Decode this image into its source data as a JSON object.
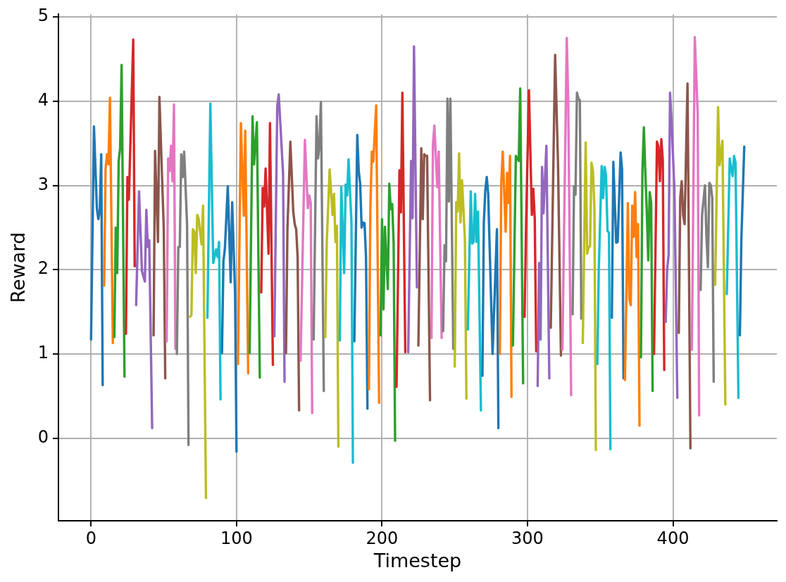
{
  "chart_data": {
    "type": "line",
    "xlabel": "Timestep",
    "ylabel": "Reward",
    "xlim": [
      -22.4,
      471.4
    ],
    "xticks": [
      0,
      100,
      200,
      300,
      400
    ],
    "ylim": [
      -0.98,
      5.03
    ],
    "yticks": [
      0,
      1,
      2,
      3,
      4,
      5
    ],
    "grid": true,
    "series": [
      {
        "color": "#1f77b4",
        "x": [
          0,
          2,
          4,
          5,
          6,
          7,
          8
        ],
        "values": [
          1.17,
          3.7,
          2.73,
          2.6,
          2.7,
          3.37,
          0.63
        ]
      },
      {
        "color": "#ff7f0e",
        "x": [
          9,
          10,
          11,
          12,
          13,
          15
        ],
        "values": [
          1.81,
          3.2,
          3.37,
          3.25,
          4.04,
          1.13
        ]
      },
      {
        "color": "#2ca02c",
        "x": [
          16,
          17,
          18,
          19,
          20,
          21,
          23
        ],
        "values": [
          1.2,
          2.5,
          1.96,
          3.29,
          3.44,
          4.43,
          0.73
        ]
      },
      {
        "color": "#d62728",
        "x": [
          24,
          25,
          26,
          29,
          30
        ],
        "values": [
          1.24,
          3.1,
          2.83,
          4.73,
          2.04
        ]
      },
      {
        "color": "#9467bd",
        "x": [
          31,
          33,
          35,
          37,
          38,
          39,
          40,
          42
        ],
        "values": [
          1.58,
          2.93,
          1.98,
          1.86,
          2.71,
          2.27,
          2.35,
          0.12
        ]
      },
      {
        "color": "#8c564b",
        "x": [
          43,
          44,
          46,
          47,
          50,
          51
        ],
        "values": [
          1.22,
          3.41,
          2.33,
          4.05,
          2.48,
          0.71
        ]
      },
      {
        "color": "#e377c2",
        "x": [
          52,
          53,
          54,
          55,
          56,
          57,
          58
        ],
        "values": [
          1.15,
          3.32,
          3.17,
          3.47,
          3.05,
          3.96,
          1.06
        ]
      },
      {
        "color": "#7f7f7f",
        "x": [
          59,
          60,
          61,
          62,
          63,
          64,
          66,
          67
        ],
        "values": [
          1.0,
          2.27,
          2.27,
          3.37,
          3.1,
          3.4,
          2.54,
          -0.08
        ]
      },
      {
        "color": "#bcbd22",
        "x": [
          68,
          69,
          70,
          71,
          72,
          73,
          74,
          76,
          77,
          79
        ],
        "values": [
          1.44,
          1.46,
          2.48,
          2.45,
          1.96,
          2.65,
          2.6,
          2.3,
          2.76,
          -0.71
        ]
      },
      {
        "color": "#17becf",
        "x": [
          80,
          82,
          84,
          86,
          87,
          88,
          89
        ],
        "values": [
          1.43,
          3.97,
          2.08,
          2.24,
          2.15,
          2.33,
          0.46
        ]
      },
      {
        "color": "#1f77b4",
        "x": [
          90,
          91,
          92,
          94,
          96,
          97,
          99,
          100
        ],
        "values": [
          1.01,
          2.1,
          2.25,
          2.99,
          1.85,
          2.8,
          1.72,
          -0.16
        ]
      },
      {
        "color": "#ff7f0e",
        "x": [
          101,
          103,
          105,
          106,
          108
        ],
        "values": [
          0.88,
          3.74,
          2.64,
          3.65,
          0.77
        ]
      },
      {
        "color": "#2ca02c",
        "x": [
          109,
          111,
          112,
          114,
          116
        ],
        "values": [
          1.01,
          3.82,
          3.25,
          3.75,
          0.72
        ]
      },
      {
        "color": "#d62728",
        "x": [
          117,
          118,
          119,
          120,
          122,
          123,
          125
        ],
        "values": [
          1.73,
          2.97,
          2.75,
          3.2,
          2.19,
          3.74,
          0.87
        ]
      },
      {
        "color": "#9467bd",
        "x": [
          126,
          128,
          129,
          132,
          133
        ],
        "values": [
          1.21,
          3.94,
          4.08,
          3.14,
          0.67
        ]
      },
      {
        "color": "#8c564b",
        "x": [
          134,
          135,
          137,
          139,
          140,
          141,
          142,
          143
        ],
        "values": [
          1.01,
          2.48,
          3.52,
          2.69,
          2.54,
          2.48,
          2.15,
          0.33
        ]
      },
      {
        "color": "#e377c2",
        "x": [
          144,
          147,
          149,
          150,
          151,
          152
        ],
        "values": [
          0.92,
          3.54,
          2.73,
          2.88,
          2.79,
          0.3
        ]
      },
      {
        "color": "#7f7f7f",
        "x": [
          153,
          155,
          156,
          157,
          158,
          160
        ],
        "values": [
          1.17,
          3.82,
          3.32,
          3.48,
          3.99,
          0.56
        ]
      },
      {
        "color": "#bcbd22",
        "x": [
          161,
          162,
          164,
          166,
          167,
          168,
          169,
          170
        ],
        "values": [
          1.2,
          2.31,
          3.19,
          2.65,
          2.9,
          2.33,
          2.52,
          -0.1
        ]
      },
      {
        "color": "#17becf",
        "x": [
          171,
          172,
          174,
          175,
          176,
          177,
          179,
          180
        ],
        "values": [
          1.16,
          2.98,
          1.96,
          3.01,
          2.88,
          3.31,
          2.56,
          -0.29
        ]
      },
      {
        "color": "#1f77b4",
        "x": [
          181,
          183,
          184,
          185,
          186,
          187,
          188,
          189,
          190
        ],
        "values": [
          1.15,
          3.6,
          3.17,
          3.02,
          2.5,
          2.56,
          2.55,
          2.15,
          0.35
        ]
      },
      {
        "color": "#ff7f0e",
        "x": [
          191,
          192,
          193,
          194,
          196,
          198
        ],
        "values": [
          0.58,
          2.73,
          3.4,
          3.28,
          3.95,
          0.42
        ]
      },
      {
        "color": "#2ca02c",
        "x": [
          199,
          200,
          201,
          202,
          204,
          205,
          206,
          207,
          208,
          209
        ],
        "values": [
          1.22,
          2.6,
          1.53,
          2.51,
          1.77,
          3.02,
          2.72,
          2.78,
          2.31,
          -0.03
        ]
      },
      {
        "color": "#d62728",
        "x": [
          210,
          212,
          213,
          214,
          216
        ],
        "values": [
          0.61,
          3.18,
          2.68,
          4.1,
          1.02
        ]
      },
      {
        "color": "#9467bd",
        "x": [
          218,
          220,
          221,
          222,
          224
        ],
        "values": [
          1.02,
          3.29,
          2.61,
          4.65,
          1.79
        ]
      },
      {
        "color": "#8c564b",
        "x": [
          225,
          227,
          228,
          229,
          230,
          231,
          233
        ],
        "values": [
          1.1,
          3.44,
          2.6,
          3.37,
          3.35,
          3.35,
          0.45
        ]
      },
      {
        "color": "#e377c2",
        "x": [
          234,
          235,
          236,
          238,
          239,
          241
        ],
        "values": [
          1.19,
          3.48,
          3.71,
          2.98,
          3.4,
          1.19
        ]
      },
      {
        "color": "#7f7f7f",
        "x": [
          242,
          243,
          244,
          245,
          246,
          247,
          249
        ],
        "values": [
          1.27,
          2.29,
          2.1,
          4.03,
          2.81,
          4.03,
          1.06
        ]
      },
      {
        "color": "#bcbd22",
        "x": [
          250,
          251,
          252,
          253,
          254,
          255,
          257,
          258
        ],
        "values": [
          0.85,
          2.8,
          2.69,
          3.38,
          2.56,
          3.06,
          2.35,
          0.47
        ]
      },
      {
        "color": "#17becf",
        "x": [
          259,
          261,
          262,
          263,
          264,
          265,
          266,
          268
        ],
        "values": [
          1.29,
          2.93,
          2.31,
          2.33,
          2.9,
          2.33,
          2.69,
          0.33
        ]
      },
      {
        "color": "#1f77b4",
        "x": [
          269,
          270,
          271,
          272,
          273,
          276,
          279,
          280
        ],
        "values": [
          0.74,
          2.56,
          2.94,
          3.1,
          2.9,
          1.0,
          2.48,
          0.12
        ]
      },
      {
        "color": "#ff7f0e",
        "x": [
          281,
          282,
          283,
          285,
          286,
          287,
          288,
          289
        ],
        "values": [
          1.0,
          3.04,
          3.4,
          2.45,
          3.15,
          2.79,
          3.35,
          0.49
        ]
      },
      {
        "color": "#2ca02c",
        "x": [
          290,
          292,
          294,
          295,
          297
        ],
        "values": [
          1.1,
          3.35,
          3.29,
          4.15,
          0.65
        ]
      },
      {
        "color": "#d62728",
        "x": [
          298,
          299,
          301,
          303,
          304,
          305,
          306
        ],
        "values": [
          1.44,
          2.5,
          4.13,
          2.65,
          2.96,
          2.6,
          1.03
        ]
      },
      {
        "color": "#9467bd",
        "x": [
          307,
          308,
          309,
          310,
          311,
          313,
          315
        ],
        "values": [
          0.62,
          2.08,
          1.17,
          3.22,
          2.67,
          3.47,
          0.71
        ]
      },
      {
        "color": "#8c564b",
        "x": [
          316,
          319,
          321,
          323
        ],
        "values": [
          1.31,
          4.55,
          3.25,
          0.98
        ]
      },
      {
        "color": "#e377c2",
        "x": [
          324,
          327,
          328,
          330
        ],
        "values": [
          1.05,
          4.75,
          4.0,
          0.51
        ]
      },
      {
        "color": "#7f7f7f",
        "x": [
          331,
          332,
          333,
          334,
          335,
          336,
          337
        ],
        "values": [
          1.47,
          2.99,
          2.89,
          4.1,
          4.03,
          4.01,
          1.42
        ]
      },
      {
        "color": "#bcbd22",
        "x": [
          338,
          340,
          341,
          342,
          343,
          344,
          345,
          346,
          347
        ],
        "values": [
          1.13,
          3.51,
          2.19,
          2.26,
          2.28,
          3.27,
          3.17,
          2.73,
          -0.14
        ]
      },
      {
        "color": "#17becf",
        "x": [
          348,
          349,
          351,
          352,
          353,
          354,
          355,
          356,
          357
        ],
        "values": [
          0.88,
          2.0,
          3.23,
          2.85,
          3.22,
          3.11,
          2.46,
          2.44,
          -0.13
        ]
      },
      {
        "color": "#1f77b4",
        "x": [
          358,
          359,
          361,
          362,
          364,
          365,
          366
        ],
        "values": [
          1.43,
          3.28,
          2.32,
          2.33,
          3.39,
          3.19,
          0.71
        ]
      },
      {
        "color": "#ff7f0e",
        "x": [
          367,
          369,
          370,
          371,
          372,
          373,
          374,
          375,
          376,
          377
        ],
        "values": [
          0.69,
          2.79,
          1.65,
          1.58,
          2.76,
          2.39,
          2.92,
          2.15,
          2.54,
          0.15
        ]
      },
      {
        "color": "#2ca02c",
        "x": [
          378,
          379,
          380,
          381,
          382,
          383,
          384,
          385,
          386
        ],
        "values": [
          0.96,
          3.17,
          3.69,
          3.15,
          2.69,
          2.11,
          2.92,
          2.79,
          0.56
        ]
      },
      {
        "color": "#d62728",
        "x": [
          387,
          389,
          390,
          391,
          392,
          393,
          394
        ],
        "values": [
          1.0,
          3.52,
          3.46,
          3.05,
          3.55,
          3.3,
          0.81
        ]
      },
      {
        "color": "#9467bd",
        "x": [
          395,
          396,
          397,
          398,
          399,
          401,
          403
        ],
        "values": [
          1.38,
          2.0,
          2.17,
          4.1,
          3.77,
          2.95,
          0.48
        ]
      },
      {
        "color": "#8c564b",
        "x": [
          404,
          405,
          406,
          407,
          408,
          410,
          412
        ],
        "values": [
          1.25,
          2.85,
          3.05,
          2.65,
          2.54,
          4.21,
          -0.12
        ]
      },
      {
        "color": "#e377c2",
        "x": [
          413,
          415,
          417,
          418
        ],
        "values": [
          1.05,
          4.76,
          3.85,
          0.27
        ]
      },
      {
        "color": "#7f7f7f",
        "x": [
          419,
          420,
          422,
          423,
          424,
          425,
          426,
          427,
          428
        ],
        "values": [
          1.76,
          2.65,
          3.0,
          2.4,
          2.03,
          3.03,
          3.0,
          2.85,
          0.67
        ]
      },
      {
        "color": "#bcbd22",
        "x": [
          429,
          431,
          432,
          434,
          436
        ],
        "values": [
          1.82,
          3.93,
          3.24,
          3.53,
          0.4
        ]
      },
      {
        "color": "#17becf",
        "x": [
          437,
          439,
          440,
          441,
          442,
          443,
          445
        ],
        "values": [
          1.71,
          3.32,
          3.2,
          3.11,
          3.35,
          3.27,
          0.48
        ]
      },
      {
        "color": "#1f77b4",
        "x": [
          446,
          447,
          449
        ],
        "values": [
          1.22,
          2.35,
          3.46
        ]
      }
    ]
  }
}
